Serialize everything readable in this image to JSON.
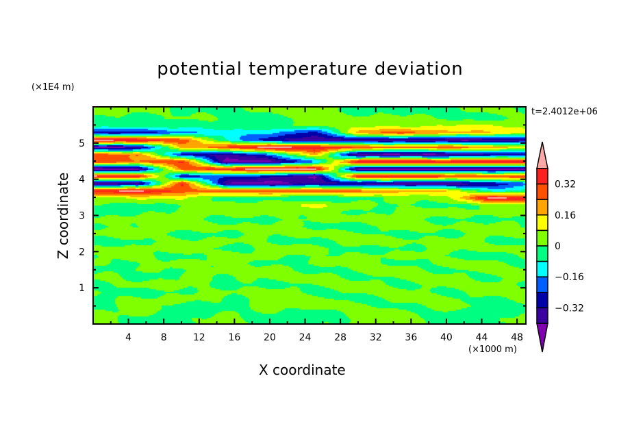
{
  "chart_data": {
    "type": "heatmap",
    "subtype": "filled-contour",
    "title": "potential temperature deviation",
    "xlabel": "X coordinate",
    "ylabel": "Z coordinate",
    "x_unit_label": "(×1000 m)",
    "y_unit_label": "(×1E4 m)",
    "annotation": "t=2.4012e+06",
    "xlim": [
      0,
      49
    ],
    "ylim": [
      0,
      6
    ],
    "x_ticks": [
      4,
      8,
      12,
      16,
      20,
      24,
      28,
      32,
      36,
      40,
      44,
      48
    ],
    "x_tick_labels": [
      "4",
      "8",
      "12",
      "16",
      "20",
      "24",
      "28",
      "32",
      "36",
      "40",
      "44",
      "48"
    ],
    "y_ticks": [
      1,
      2,
      3,
      4,
      5
    ],
    "y_tick_labels": [
      "1",
      "2",
      "3",
      "4",
      "5"
    ],
    "colorbar": {
      "levels": [
        -0.4,
        -0.32,
        -0.24,
        -0.16,
        -0.08,
        0,
        0.08,
        0.16,
        0.24,
        0.32,
        0.4
      ],
      "tick_values": [
        0.32,
        0.16,
        0,
        -0.16,
        -0.32
      ],
      "tick_labels": [
        "0.32",
        "0.16",
        "0",
        "−0.16",
        "−0.32"
      ],
      "colors": [
        "#8000b0",
        "#3a00a0",
        "#0000a8",
        "#0060ff",
        "#00ffff",
        "#00ff80",
        "#80ff00",
        "#ffff00",
        "#ffa500",
        "#ff5000",
        "#ff2020",
        "#ffa8a8"
      ],
      "extend": "both"
    },
    "grid_x": [
      0,
      5,
      10,
      15,
      20,
      25,
      30,
      35,
      40,
      45,
      50
    ],
    "grid_z": [
      5.9,
      5.7,
      5.5,
      5.3,
      5.1,
      4.9,
      4.7,
      4.5,
      4.3,
      4.1,
      3.9,
      3.7,
      3.5,
      3.3,
      3.1,
      2.9,
      2.7,
      2.5,
      2.3,
      2.1,
      1.9,
      1.7,
      1.5,
      1.3,
      1.1,
      0.9,
      0.7,
      0.5,
      0.3,
      0.1
    ],
    "values": [
      [
        0.02,
        0.03,
        -0.02,
        -0.02,
        0.02,
        0.03,
        -0.02,
        -0.03,
        -0.02,
        0.02,
        -0.02
      ],
      [
        -0.02,
        -0.03,
        0.02,
        -0.02,
        -0.03,
        0.02,
        0.03,
        0.02,
        -0.02,
        -0.03,
        0.02
      ],
      [
        -0.02,
        -0.02,
        -0.03,
        -0.02,
        -0.02,
        0.03,
        0.05,
        0.05,
        0.08,
        0.1,
        0.05
      ],
      [
        -0.3,
        -0.3,
        -0.2,
        -0.1,
        -0.15,
        -0.3,
        0.2,
        0.3,
        0.2,
        0.15,
        0.1
      ],
      [
        0.45,
        0.42,
        0.3,
        -0.1,
        -0.3,
        -0.4,
        -0.35,
        -0.4,
        -0.42,
        -0.4,
        -0.35
      ],
      [
        -0.42,
        -0.4,
        0.2,
        0.3,
        0.45,
        0.4,
        0.3,
        0.25,
        0.3,
        0.2,
        0.15
      ],
      [
        0.3,
        0.25,
        -0.3,
        -0.35,
        -0.2,
        0.2,
        -0.45,
        -0.45,
        -0.42,
        -0.35,
        -0.3
      ],
      [
        0.3,
        0.25,
        0.35,
        -0.45,
        -0.42,
        -0.2,
        0.45,
        0.45,
        0.42,
        0.45,
        0.4
      ],
      [
        -0.45,
        -0.42,
        0.3,
        0.35,
        0.45,
        0.45,
        -0.45,
        -0.45,
        -0.45,
        -0.45,
        -0.42
      ],
      [
        0.45,
        0.4,
        -0.3,
        -0.2,
        -0.3,
        -0.42,
        0.4,
        0.42,
        0.35,
        0.3,
        0.35
      ],
      [
        -0.42,
        -0.4,
        0.35,
        -0.4,
        -0.45,
        -0.35,
        -0.35,
        -0.42,
        -0.4,
        -0.3,
        -0.2
      ],
      [
        0.4,
        0.42,
        0.3,
        0.25,
        0.3,
        0.3,
        0.25,
        0.2,
        0.15,
        -0.1,
        -0.05
      ],
      [
        0.05,
        0.1,
        0.08,
        -0.02,
        -0.05,
        -0.08,
        -0.03,
        0.02,
        0.05,
        0.42,
        0.4
      ],
      [
        -0.02,
        -0.03,
        -0.01,
        0.02,
        0.06,
        0.1,
        0.03,
        -0.02,
        -0.02,
        0.02,
        0.03
      ],
      [
        -0.03,
        -0.02,
        0.03,
        0.02,
        0.03,
        0.02,
        -0.02,
        0.03,
        0.02,
        0.03,
        0.02
      ],
      [
        0.03,
        0.02,
        0.02,
        -0.02,
        -0.03,
        0.03,
        0.02,
        0.03,
        -0.02,
        -0.03,
        0.03
      ],
      [
        -0.02,
        0.02,
        0.03,
        0.03,
        0.02,
        -0.02,
        -0.03,
        0.02,
        0.03,
        0.02,
        -0.02
      ],
      [
        0.02,
        0.03,
        -0.02,
        -0.03,
        0.02,
        0.03,
        0.02,
        -0.02,
        -0.03,
        0.03,
        0.02
      ],
      [
        -0.03,
        -0.02,
        0.02,
        0.03,
        -0.02,
        -0.02,
        0.03,
        0.03,
        0.02,
        -0.02,
        -0.03
      ],
      [
        0.03,
        0.02,
        0.03,
        -0.02,
        0.02,
        0.03,
        -0.02,
        -0.03,
        0.03,
        0.02,
        0.03
      ],
      [
        -0.02,
        0.03,
        -0.02,
        0.02,
        0.03,
        -0.02,
        0.02,
        0.03,
        -0.02,
        -0.03,
        0.02
      ],
      [
        0.02,
        -0.02,
        0.03,
        0.02,
        -0.03,
        0.02,
        0.03,
        -0.02,
        0.03,
        0.02,
        -0.02
      ],
      [
        -0.03,
        0.02,
        -0.02,
        0.03,
        0.02,
        -0.03,
        0.02,
        0.03,
        -0.02,
        0.03,
        0.02
      ],
      [
        0.02,
        -0.03,
        0.02,
        -0.02,
        0.03,
        0.02,
        -0.02,
        0.02,
        0.03,
        -0.02,
        0.03
      ],
      [
        -0.02,
        0.02,
        0.03,
        -0.02,
        -0.03,
        0.02,
        0.03,
        -0.02,
        0.02,
        0.03,
        -0.02
      ],
      [
        0.02,
        -0.03,
        -0.02,
        0.03,
        0.02,
        -0.03,
        0.02,
        0.03,
        -0.02,
        0.02,
        0.03
      ],
      [
        -0.03,
        0.02,
        0.03,
        -0.02,
        0.03,
        0.02,
        -0.03,
        0.02,
        0.03,
        -0.02,
        0.02
      ],
      [
        -0.02,
        0.03,
        -0.02,
        -0.03,
        0.02,
        0.03,
        0.02,
        -0.02,
        0.03,
        -0.03,
        -0.02
      ],
      [
        0.03,
        0.02,
        -0.03,
        0.02,
        -0.02,
        -0.03,
        0.03,
        0.02,
        -0.02,
        -0.03,
        0.02
      ],
      [
        0.02,
        -0.02,
        -0.03,
        0.03,
        -0.02,
        -0.03,
        0.02,
        0.03,
        -0.03,
        -0.02,
        0.03
      ]
    ]
  }
}
